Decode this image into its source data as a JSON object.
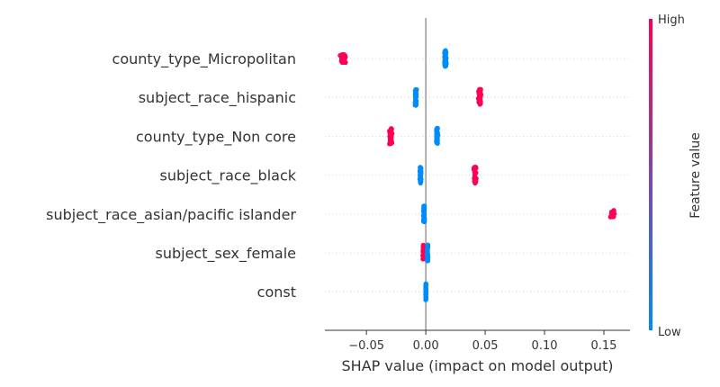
{
  "chart_data": {
    "type": "scatter",
    "subtype": "shap-beeswarm",
    "xlabel": "SHAP value (impact on model output)",
    "xlim": [
      -0.085,
      0.172
    ],
    "xticks": [
      -0.05,
      0.0,
      0.05,
      0.1,
      0.15
    ],
    "xtick_labels": [
      "−0.05",
      "0.00",
      "0.05",
      "0.10",
      "0.15"
    ],
    "zero_line": 0,
    "grid": false,
    "colorbar": {
      "title": "Feature value",
      "high_label": "High",
      "low_label": "Low",
      "high_color": "#ff0052",
      "low_color": "#008bfb"
    },
    "features": [
      {
        "name": "county_type_Micropolitan",
        "clusters": [
          {
            "feature_value": "high",
            "center": -0.0695,
            "spread": 0.0035,
            "count": 45
          },
          {
            "feature_value": "low",
            "center": 0.0165,
            "spread": 0.0012,
            "count": 60
          }
        ]
      },
      {
        "name": "subject_race_hispanic",
        "clusters": [
          {
            "feature_value": "low",
            "center": -0.0085,
            "spread": 0.0009,
            "count": 55
          },
          {
            "feature_value": "high",
            "center": 0.0455,
            "spread": 0.0015,
            "count": 45
          }
        ]
      },
      {
        "name": "county_type_Non core",
        "clusters": [
          {
            "feature_value": "high",
            "center": -0.0295,
            "spread": 0.0015,
            "count": 45
          },
          {
            "feature_value": "low",
            "center": 0.0095,
            "spread": 0.0009,
            "count": 55
          }
        ]
      },
      {
        "name": "subject_race_black",
        "clusters": [
          {
            "feature_value": "low",
            "center": -0.0045,
            "spread": 0.0008,
            "count": 55
          },
          {
            "feature_value": "high",
            "center": 0.0415,
            "spread": 0.0015,
            "count": 40
          }
        ]
      },
      {
        "name": "subject_race_asian/pacific islander",
        "clusters": [
          {
            "feature_value": "low",
            "center": -0.0015,
            "spread": 0.0008,
            "count": 55
          },
          {
            "feature_value": "high",
            "center": 0.157,
            "spread": 0.0035,
            "count": 12
          }
        ]
      },
      {
        "name": "subject_sex_female",
        "clusters": [
          {
            "feature_value": "high",
            "center": -0.002,
            "spread": 0.0008,
            "count": 35
          },
          {
            "feature_value": "low",
            "center": 0.0015,
            "spread": 0.0006,
            "count": 45
          }
        ]
      },
      {
        "name": "const",
        "clusters": [
          {
            "feature_value": "low",
            "center": 0.0,
            "spread": 0.0003,
            "count": 60
          }
        ]
      }
    ]
  }
}
